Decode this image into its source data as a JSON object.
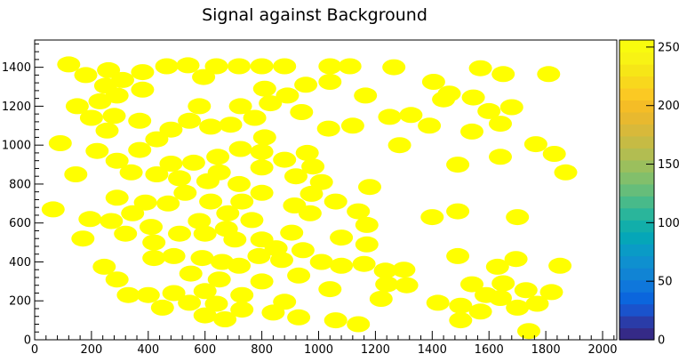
{
  "chart_data": {
    "type": "scatter",
    "title": "Signal against Background",
    "xlabel": "",
    "ylabel": "",
    "xlim": [
      0,
      2050
    ],
    "ylim": [
      0,
      1540
    ],
    "x_ticks": [
      0,
      200,
      400,
      600,
      800,
      1000,
      1200,
      1400,
      1600,
      1800,
      2000
    ],
    "y_ticks": [
      0,
      200,
      400,
      600,
      800,
      1000,
      1200,
      1400
    ],
    "colorbar": {
      "min": 0,
      "max": 256,
      "ticks": [
        0,
        50,
        100,
        150,
        200,
        250
      ],
      "colors": [
        "#352a87",
        "#2a3ca8",
        "#1a53cc",
        "#0b66dd",
        "#0f77db",
        "#1184d4",
        "#0f90cf",
        "#0a9bc6",
        "#05a6b8",
        "#12aeaa",
        "#2ab59b",
        "#48ba8a",
        "#66bd7a",
        "#82bf6b",
        "#9bbf5d",
        "#b2bd51",
        "#c6bb44",
        "#d8b93a",
        "#e8b92f",
        "#f5bd26",
        "#fbc923",
        "#f8d81d",
        "#f6e617",
        "#f8f314",
        "#f9fb0e"
      ]
    },
    "marker_color": "#ffff00",
    "points": [
      [
        120,
        1415
      ],
      [
        180,
        1360
      ],
      [
        260,
        1385
      ],
      [
        380,
        1375
      ],
      [
        465,
        1405
      ],
      [
        540,
        1410
      ],
      [
        640,
        1405
      ],
      [
        720,
        1405
      ],
      [
        800,
        1405
      ],
      [
        880,
        1405
      ],
      [
        1040,
        1405
      ],
      [
        1110,
        1405
      ],
      [
        1265,
        1400
      ],
      [
        1570,
        1395
      ],
      [
        1650,
        1365
      ],
      [
        1810,
        1365
      ],
      [
        250,
        1305
      ],
      [
        310,
        1335
      ],
      [
        380,
        1285
      ],
      [
        595,
        1350
      ],
      [
        810,
        1290
      ],
      [
        955,
        1310
      ],
      [
        1040,
        1325
      ],
      [
        1405,
        1325
      ],
      [
        1165,
        1255
      ],
      [
        1460,
        1265
      ],
      [
        1545,
        1245
      ],
      [
        150,
        1200
      ],
      [
        230,
        1225
      ],
      [
        290,
        1255
      ],
      [
        580,
        1200
      ],
      [
        725,
        1200
      ],
      [
        830,
        1215
      ],
      [
        890,
        1255
      ],
      [
        1440,
        1235
      ],
      [
        1680,
        1195
      ],
      [
        200,
        1140
      ],
      [
        280,
        1150
      ],
      [
        370,
        1125
      ],
      [
        545,
        1125
      ],
      [
        620,
        1095
      ],
      [
        690,
        1105
      ],
      [
        775,
        1140
      ],
      [
        940,
        1170
      ],
      [
        1035,
        1085
      ],
      [
        1120,
        1100
      ],
      [
        1250,
        1145
      ],
      [
        1325,
        1155
      ],
      [
        1390,
        1100
      ],
      [
        1600,
        1175
      ],
      [
        1640,
        1110
      ],
      [
        90,
        1010
      ],
      [
        255,
        1075
      ],
      [
        480,
        1080
      ],
      [
        430,
        1030
      ],
      [
        370,
        975
      ],
      [
        220,
        970
      ],
      [
        725,
        980
      ],
      [
        810,
        1040
      ],
      [
        800,
        965
      ],
      [
        960,
        960
      ],
      [
        1285,
        1000
      ],
      [
        1540,
        1070
      ],
      [
        1765,
        1005
      ],
      [
        1830,
        955
      ],
      [
        1490,
        900
      ],
      [
        1640,
        940
      ],
      [
        1870,
        860
      ],
      [
        145,
        850
      ],
      [
        290,
        920
      ],
      [
        340,
        860
      ],
      [
        430,
        850
      ],
      [
        480,
        905
      ],
      [
        560,
        910
      ],
      [
        645,
        940
      ],
      [
        800,
        885
      ],
      [
        880,
        925
      ],
      [
        980,
        890
      ],
      [
        510,
        830
      ],
      [
        610,
        815
      ],
      [
        650,
        860
      ],
      [
        720,
        800
      ],
      [
        920,
        840
      ],
      [
        1010,
        810
      ],
      [
        1180,
        785
      ],
      [
        65,
        670
      ],
      [
        195,
        620
      ],
      [
        290,
        730
      ],
      [
        345,
        650
      ],
      [
        390,
        705
      ],
      [
        470,
        700
      ],
      [
        530,
        755
      ],
      [
        620,
        710
      ],
      [
        680,
        650
      ],
      [
        730,
        710
      ],
      [
        800,
        755
      ],
      [
        915,
        690
      ],
      [
        975,
        750
      ],
      [
        970,
        650
      ],
      [
        1060,
        710
      ],
      [
        1140,
        660
      ],
      [
        1170,
        590
      ],
      [
        1400,
        630
      ],
      [
        1490,
        660
      ],
      [
        1700,
        630
      ],
      [
        170,
        520
      ],
      [
        270,
        610
      ],
      [
        320,
        545
      ],
      [
        410,
        580
      ],
      [
        420,
        500
      ],
      [
        510,
        545
      ],
      [
        580,
        610
      ],
      [
        600,
        545
      ],
      [
        675,
        570
      ],
      [
        705,
        515
      ],
      [
        765,
        615
      ],
      [
        800,
        515
      ],
      [
        850,
        470
      ],
      [
        905,
        550
      ],
      [
        945,
        460
      ],
      [
        1080,
        525
      ],
      [
        1170,
        490
      ],
      [
        245,
        375
      ],
      [
        290,
        310
      ],
      [
        420,
        420
      ],
      [
        490,
        430
      ],
      [
        590,
        420
      ],
      [
        660,
        400
      ],
      [
        720,
        380
      ],
      [
        790,
        430
      ],
      [
        870,
        410
      ],
      [
        930,
        330
      ],
      [
        1010,
        400
      ],
      [
        1080,
        380
      ],
      [
        1160,
        390
      ],
      [
        1235,
        355
      ],
      [
        1300,
        360
      ],
      [
        1490,
        430
      ],
      [
        1630,
        375
      ],
      [
        1695,
        415
      ],
      [
        1850,
        380
      ],
      [
        330,
        230
      ],
      [
        400,
        230
      ],
      [
        490,
        240
      ],
      [
        550,
        340
      ],
      [
        600,
        250
      ],
      [
        650,
        310
      ],
      [
        730,
        230
      ],
      [
        800,
        300
      ],
      [
        880,
        195
      ],
      [
        1040,
        260
      ],
      [
        1240,
        285
      ],
      [
        1310,
        280
      ],
      [
        1540,
        285
      ],
      [
        1590,
        230
      ],
      [
        1650,
        290
      ],
      [
        1730,
        255
      ],
      [
        1820,
        245
      ],
      [
        450,
        165
      ],
      [
        545,
        190
      ],
      [
        600,
        125
      ],
      [
        640,
        185
      ],
      [
        670,
        105
      ],
      [
        730,
        155
      ],
      [
        840,
        140
      ],
      [
        930,
        115
      ],
      [
        1060,
        100
      ],
      [
        1140,
        80
      ],
      [
        1220,
        210
      ],
      [
        1420,
        190
      ],
      [
        1500,
        175
      ],
      [
        1500,
        100
      ],
      [
        1570,
        145
      ],
      [
        1640,
        215
      ],
      [
        1700,
        165
      ],
      [
        1770,
        185
      ],
      [
        1740,
        45
      ]
    ]
  }
}
